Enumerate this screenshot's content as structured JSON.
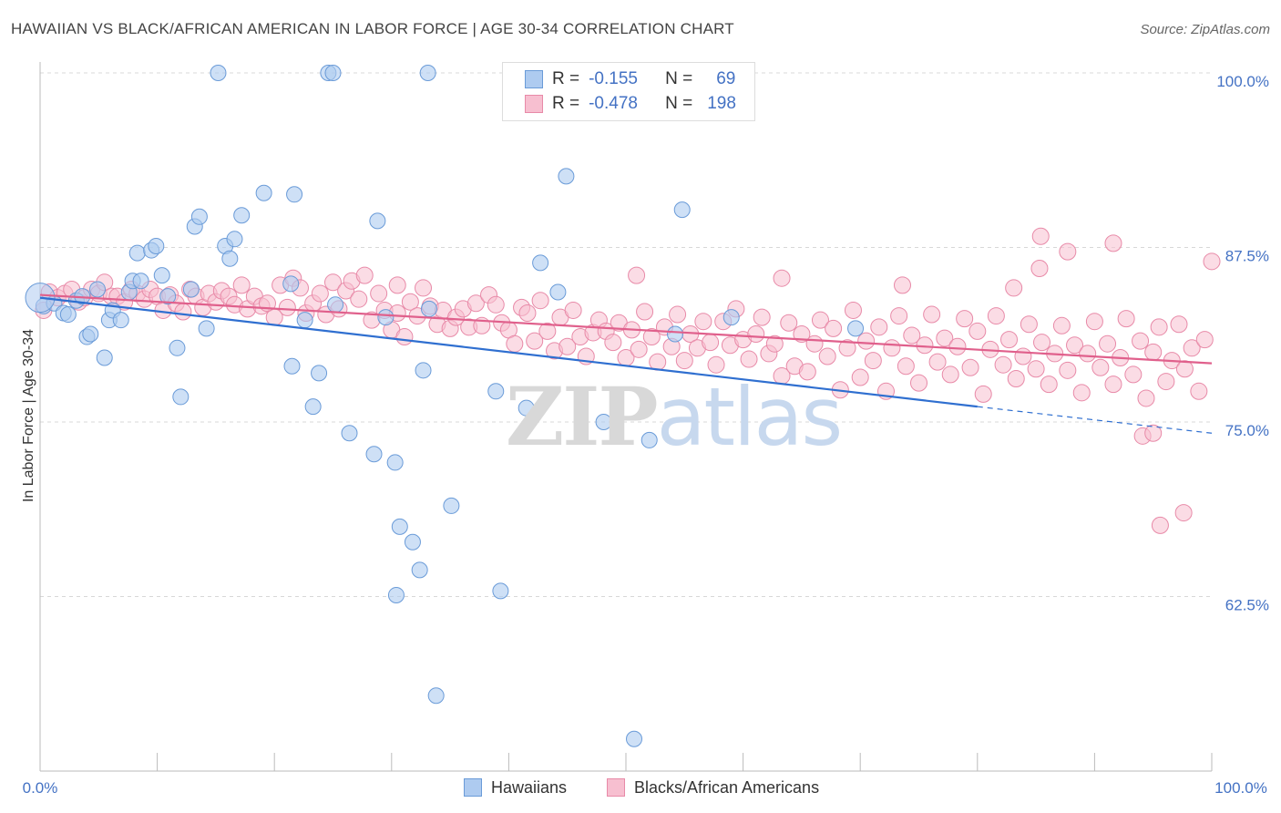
{
  "title": "HAWAIIAN VS BLACK/AFRICAN AMERICAN IN LABOR FORCE | AGE 30-34 CORRELATION CHART",
  "source": "Source: ZipAtlas.com",
  "watermark": {
    "zip": "ZIP",
    "atlas": "atlas"
  },
  "legend_top": {
    "r_label": "R =",
    "n_label": "N =",
    "rows": [
      {
        "r": "-0.155",
        "n": "69"
      },
      {
        "r": "-0.478",
        "n": "198"
      }
    ]
  },
  "colors": {
    "hawaiians_fill": "#aecbf0",
    "hawaiians_stroke": "#6a9bd8",
    "hawaiians_line": "#2f6fd0",
    "blacks_fill": "#f7bfd0",
    "blacks_stroke": "#e88aa8",
    "blacks_line": "#e0608c",
    "axis_label": "#4472c4",
    "grid": "#d8d8d8"
  },
  "chart_data": {
    "type": "scatter",
    "title": "HAWAIIAN VS BLACK/AFRICAN AMERICAN IN LABOR FORCE | AGE 30-34 CORRELATION CHART",
    "xlabel": "",
    "ylabel": "In Labor Force | Age 30-34",
    "xlim": [
      0,
      100
    ],
    "ylim": [
      51,
      102
    ],
    "x_tick_labels": [
      "0.0%",
      "100.0%"
    ],
    "y_ticks": [
      {
        "value": 100.0,
        "label": "100.0%"
      },
      {
        "value": 87.5,
        "label": "87.5%"
      },
      {
        "value": 75.0,
        "label": "75.0%"
      },
      {
        "value": 62.5,
        "label": "62.5%"
      }
    ],
    "grid": true,
    "legend": "bottom",
    "series": [
      {
        "name": "Hawaiians",
        "trend": {
          "x0": 0,
          "y0": 83.9,
          "x1": 80,
          "y1": 76.1,
          "dash_to_x": 100,
          "dash_to_y": 74.2
        },
        "points": [
          [
            0.3,
            83.3
          ],
          [
            1.2,
            83.5
          ],
          [
            2,
            82.8
          ],
          [
            2.4,
            82.7
          ],
          [
            3.1,
            83.7
          ],
          [
            3.6,
            84.0
          ],
          [
            4.0,
            81.1
          ],
          [
            4.3,
            81.3
          ],
          [
            4.9,
            84.5
          ],
          [
            5.5,
            79.6
          ],
          [
            5.9,
            82.3
          ],
          [
            6.2,
            83.0
          ],
          [
            6.9,
            82.3
          ],
          [
            7.6,
            84.3
          ],
          [
            7.9,
            85.1
          ],
          [
            8.6,
            85.1
          ],
          [
            8.3,
            87.1
          ],
          [
            9.5,
            87.3
          ],
          [
            9.9,
            87.6
          ],
          [
            10.4,
            85.5
          ],
          [
            10.9,
            84.0
          ],
          [
            11.7,
            80.3
          ],
          [
            12.0,
            76.8
          ],
          [
            12.9,
            84.5
          ],
          [
            13.2,
            89.0
          ],
          [
            13.6,
            89.7
          ],
          [
            14.2,
            81.7
          ],
          [
            15.2,
            100
          ],
          [
            15.8,
            87.6
          ],
          [
            16.2,
            86.7
          ],
          [
            16.6,
            88.1
          ],
          [
            17.2,
            89.8
          ],
          [
            19.1,
            91.4
          ],
          [
            21.4,
            84.9
          ],
          [
            21.7,
            91.3
          ],
          [
            21.5,
            79.0
          ],
          [
            22.6,
            82.3
          ],
          [
            23.3,
            76.1
          ],
          [
            23.8,
            78.5
          ],
          [
            24.6,
            100
          ],
          [
            25.0,
            100
          ],
          [
            25.2,
            83.4
          ],
          [
            26.4,
            74.2
          ],
          [
            28.5,
            72.7
          ],
          [
            28.8,
            89.4
          ],
          [
            29.5,
            82.5
          ],
          [
            30.3,
            72.1
          ],
          [
            32.7,
            78.7
          ],
          [
            33.1,
            100
          ],
          [
            33.2,
            83.1
          ],
          [
            35.1,
            69.0
          ],
          [
            30.4,
            62.6
          ],
          [
            30.7,
            67.5
          ],
          [
            31.8,
            66.4
          ],
          [
            32.4,
            64.4
          ],
          [
            33.8,
            55.4
          ],
          [
            38.9,
            77.2
          ],
          [
            39.3,
            62.9
          ],
          [
            41.5,
            76.0
          ],
          [
            42.7,
            86.4
          ],
          [
            44.2,
            84.3
          ],
          [
            44.9,
            92.6
          ],
          [
            48.1,
            75.0
          ],
          [
            52.0,
            73.7
          ],
          [
            54.2,
            81.3
          ],
          [
            54.8,
            90.2
          ],
          [
            59.0,
            82.5
          ],
          [
            69.6,
            81.7
          ],
          [
            50.7,
            52.3
          ]
        ]
      },
      {
        "name": "Blacks/African Americans",
        "trend": {
          "x0": 0,
          "y0": 84.1,
          "x1": 100,
          "y1": 79.2
        },
        "points": [
          [
            0.3,
            83.0
          ],
          [
            0.8,
            84.3
          ],
          [
            1.5,
            83.9
          ],
          [
            2.1,
            84.2
          ],
          [
            2.7,
            84.5
          ],
          [
            3.3,
            83.6
          ],
          [
            3.8,
            83.9
          ],
          [
            4.4,
            84.5
          ],
          [
            5.0,
            84.2
          ],
          [
            5.5,
            85.0
          ],
          [
            6.1,
            84.0
          ],
          [
            6.6,
            84.0
          ],
          [
            7.2,
            83.6
          ],
          [
            7.8,
            84.5
          ],
          [
            8.3,
            84.2
          ],
          [
            8.9,
            83.8
          ],
          [
            9.4,
            84.5
          ],
          [
            10.0,
            84.0
          ],
          [
            10.5,
            83.0
          ],
          [
            11.1,
            84.1
          ],
          [
            11.6,
            83.5
          ],
          [
            12.2,
            82.9
          ],
          [
            12.8,
            84.5
          ],
          [
            13.3,
            84.0
          ],
          [
            13.9,
            83.2
          ],
          [
            14.4,
            84.2
          ],
          [
            15.0,
            83.6
          ],
          [
            15.5,
            84.4
          ],
          [
            16.1,
            84.0
          ],
          [
            16.6,
            83.4
          ],
          [
            17.2,
            84.8
          ],
          [
            17.7,
            83.1
          ],
          [
            18.3,
            84.0
          ],
          [
            18.9,
            83.3
          ],
          [
            19.4,
            83.5
          ],
          [
            20.0,
            82.5
          ],
          [
            20.5,
            84.8
          ],
          [
            21.1,
            83.2
          ],
          [
            21.6,
            85.3
          ],
          [
            22.2,
            84.6
          ],
          [
            22.7,
            82.8
          ],
          [
            23.3,
            83.5
          ],
          [
            23.9,
            84.2
          ],
          [
            24.4,
            82.7
          ],
          [
            25.0,
            85.0
          ],
          [
            25.5,
            83.1
          ],
          [
            26.1,
            84.4
          ],
          [
            26.6,
            85.1
          ],
          [
            27.2,
            83.8
          ],
          [
            27.7,
            85.5
          ],
          [
            28.3,
            82.3
          ],
          [
            28.9,
            84.2
          ],
          [
            29.4,
            83.0
          ],
          [
            30.0,
            81.6
          ],
          [
            30.5,
            82.8
          ],
          [
            31.1,
            81.1
          ],
          [
            31.6,
            83.6
          ],
          [
            32.2,
            82.6
          ],
          [
            32.7,
            84.6
          ],
          [
            33.3,
            83.3
          ],
          [
            33.9,
            82.0
          ],
          [
            34.4,
            83.0
          ],
          [
            35.0,
            81.7
          ],
          [
            35.5,
            82.5
          ],
          [
            36.1,
            83.1
          ],
          [
            36.6,
            81.8
          ],
          [
            37.2,
            83.5
          ],
          [
            37.7,
            81.9
          ],
          [
            38.3,
            84.1
          ],
          [
            38.9,
            83.4
          ],
          [
            39.4,
            82.1
          ],
          [
            40.0,
            81.6
          ],
          [
            40.5,
            80.6
          ],
          [
            41.1,
            83.2
          ],
          [
            41.6,
            82.8
          ],
          [
            42.2,
            80.8
          ],
          [
            42.7,
            83.7
          ],
          [
            43.3,
            81.5
          ],
          [
            43.9,
            80.1
          ],
          [
            44.4,
            82.5
          ],
          [
            45.0,
            80.4
          ],
          [
            45.5,
            83.0
          ],
          [
            46.1,
            81.1
          ],
          [
            46.6,
            79.7
          ],
          [
            47.2,
            81.4
          ],
          [
            47.7,
            82.3
          ],
          [
            48.3,
            81.5
          ],
          [
            48.9,
            80.7
          ],
          [
            49.4,
            82.1
          ],
          [
            50.0,
            79.6
          ],
          [
            50.5,
            81.6
          ],
          [
            51.1,
            80.2
          ],
          [
            51.6,
            82.9
          ],
          [
            52.2,
            81.1
          ],
          [
            52.7,
            79.3
          ],
          [
            53.3,
            81.8
          ],
          [
            53.9,
            80.4
          ],
          [
            54.4,
            82.7
          ],
          [
            55.0,
            79.4
          ],
          [
            55.5,
            81.3
          ],
          [
            56.1,
            80.3
          ],
          [
            56.6,
            82.2
          ],
          [
            57.2,
            80.7
          ],
          [
            57.7,
            79.1
          ],
          [
            58.3,
            82.2
          ],
          [
            58.9,
            80.5
          ],
          [
            59.4,
            83.1
          ],
          [
            60.0,
            80.9
          ],
          [
            60.5,
            79.5
          ],
          [
            61.1,
            81.3
          ],
          [
            61.6,
            82.5
          ],
          [
            62.2,
            79.9
          ],
          [
            62.7,
            80.6
          ],
          [
            63.3,
            78.3
          ],
          [
            63.9,
            82.1
          ],
          [
            64.4,
            79.0
          ],
          [
            65.0,
            81.3
          ],
          [
            65.5,
            78.6
          ],
          [
            66.1,
            80.6
          ],
          [
            66.6,
            82.3
          ],
          [
            67.2,
            79.7
          ],
          [
            67.7,
            81.7
          ],
          [
            68.3,
            77.3
          ],
          [
            68.9,
            80.3
          ],
          [
            69.4,
            83.0
          ],
          [
            70.0,
            78.2
          ],
          [
            70.5,
            80.8
          ],
          [
            71.1,
            79.4
          ],
          [
            71.6,
            81.8
          ],
          [
            72.2,
            77.2
          ],
          [
            72.7,
            80.3
          ],
          [
            73.3,
            82.6
          ],
          [
            73.9,
            79.0
          ],
          [
            74.4,
            81.2
          ],
          [
            75.0,
            77.8
          ],
          [
            75.5,
            80.5
          ],
          [
            76.1,
            82.7
          ],
          [
            76.6,
            79.3
          ],
          [
            77.2,
            81.0
          ],
          [
            77.7,
            78.4
          ],
          [
            78.3,
            80.4
          ],
          [
            78.9,
            82.4
          ],
          [
            79.4,
            78.9
          ],
          [
            80.0,
            81.5
          ],
          [
            80.5,
            77.0
          ],
          [
            81.1,
            80.2
          ],
          [
            81.6,
            82.6
          ],
          [
            82.2,
            79.1
          ],
          [
            82.7,
            80.9
          ],
          [
            83.3,
            78.1
          ],
          [
            83.9,
            79.7
          ],
          [
            84.4,
            82.0
          ],
          [
            85.0,
            78.8
          ],
          [
            85.5,
            80.7
          ],
          [
            86.1,
            77.7
          ],
          [
            86.6,
            79.9
          ],
          [
            87.2,
            81.9
          ],
          [
            87.7,
            78.7
          ],
          [
            88.3,
            80.5
          ],
          [
            88.9,
            77.1
          ],
          [
            89.4,
            79.9
          ],
          [
            90.0,
            82.2
          ],
          [
            90.5,
            78.9
          ],
          [
            91.1,
            80.6
          ],
          [
            91.6,
            77.7
          ],
          [
            92.2,
            79.6
          ],
          [
            92.7,
            82.4
          ],
          [
            93.3,
            78.4
          ],
          [
            93.9,
            80.8
          ],
          [
            94.4,
            76.7
          ],
          [
            95.0,
            80.0
          ],
          [
            95.5,
            81.8
          ],
          [
            96.1,
            77.9
          ],
          [
            96.6,
            79.4
          ],
          [
            97.2,
            82.0
          ],
          [
            97.7,
            78.8
          ],
          [
            98.3,
            80.3
          ],
          [
            98.9,
            77.2
          ],
          [
            99.4,
            80.9
          ],
          [
            100.0,
            86.5
          ],
          [
            85.4,
            88.3
          ],
          [
            87.7,
            87.2
          ],
          [
            91.6,
            87.8
          ],
          [
            85.3,
            86.0
          ],
          [
            83.1,
            84.6
          ],
          [
            73.6,
            84.8
          ],
          [
            63.3,
            85.3
          ],
          [
            50.9,
            85.5
          ],
          [
            30.5,
            84.8
          ],
          [
            94.1,
            74.0
          ],
          [
            95.6,
            67.6
          ],
          [
            97.6,
            68.5
          ],
          [
            95.0,
            74.2
          ]
        ]
      }
    ]
  },
  "legend_bottom": [
    "Hawaiians",
    "Blacks/African Americans"
  ]
}
